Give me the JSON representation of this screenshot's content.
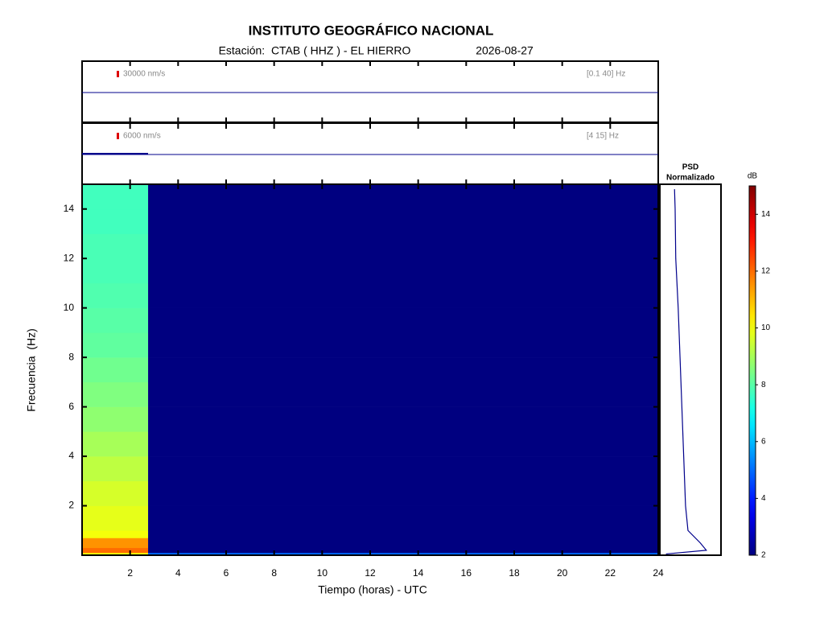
{
  "chart_data": {
    "type": "spectrogram",
    "title": "INSTITUTO GEOGRÁFICO NACIONAL",
    "subtitle": "Estación:  CTAB ( HHZ ) - EL HIERRO",
    "date": "2026-08-27",
    "x_label": "Tiempo (horas) - UTC",
    "y_label": "Frecuencia  (Hz)",
    "xlim": [
      0,
      24
    ],
    "xticks": [
      2,
      4,
      6,
      8,
      10,
      12,
      14,
      16,
      18,
      20,
      22,
      24
    ],
    "ylim": [
      0,
      15
    ],
    "yticks": [
      2,
      4,
      6,
      8,
      10,
      12,
      14
    ],
    "time_edges": [
      0,
      2.75,
      24
    ],
    "freq_edges": [
      0,
      0.1,
      0.3,
      0.7,
      1,
      2,
      3,
      4,
      5,
      6,
      7,
      8,
      9,
      10,
      11,
      12,
      13,
      14,
      15
    ],
    "z": [
      [
        10,
        5
      ],
      [
        12,
        2
      ],
      [
        11.5,
        2
      ],
      [
        10,
        2
      ],
      [
        9.8,
        2
      ],
      [
        9.6,
        2
      ],
      [
        9.3,
        2
      ],
      [
        9,
        2
      ],
      [
        8.7,
        2
      ],
      [
        8.5,
        2
      ],
      [
        8.3,
        2
      ],
      [
        8.1,
        2
      ],
      [
        8,
        2
      ],
      [
        7.9,
        2
      ],
      [
        7.8,
        2
      ],
      [
        7.8,
        2
      ],
      [
        7.7,
        2
      ],
      [
        7.7,
        2
      ]
    ],
    "colorbar": {
      "label": "dB",
      "clim": [
        2,
        15
      ],
      "ticks": [
        2,
        4,
        6,
        8,
        10,
        12,
        14
      ]
    },
    "psd": {
      "title": "PSD",
      "subtitle": "Normalizado",
      "color": "#00008b",
      "xlim": [
        0,
        1
      ],
      "freq": [
        0.05,
        0.2,
        0.5,
        1,
        2,
        4,
        6,
        8,
        10,
        12,
        14,
        14.8
      ],
      "values": [
        0.1,
        0.76,
        0.66,
        0.46,
        0.42,
        0.39,
        0.36,
        0.33,
        0.3,
        0.26,
        0.25,
        0.24
      ]
    },
    "traces": [
      {
        "scale": "30000 nm/s",
        "band": "[0.1 40] Hz"
      },
      {
        "scale": "6000 nm/s",
        "band": "[4 15] Hz"
      }
    ]
  }
}
